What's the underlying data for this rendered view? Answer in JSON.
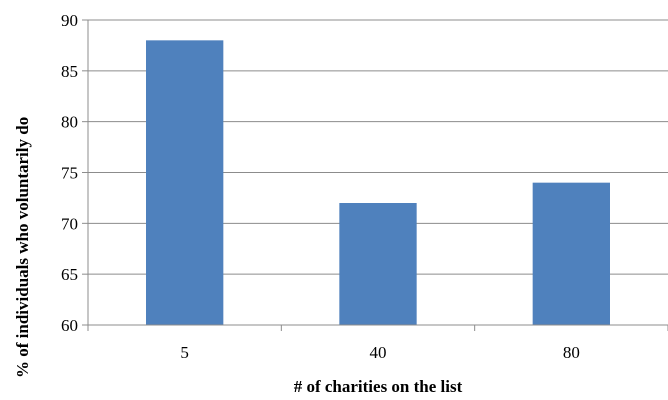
{
  "chart_data": {
    "type": "bar",
    "categories": [
      "5",
      "40",
      "80"
    ],
    "values": [
      88,
      72,
      74
    ],
    "title": "",
    "xlabel": "# of charities on the list",
    "ylabel": "% of individuals who voluntarily do",
    "ylim": [
      60,
      90
    ],
    "yticks": [
      "60",
      "65",
      "70",
      "75",
      "80",
      "85",
      "90"
    ],
    "grid": true,
    "legend": "none",
    "bar_color": "#4f81bd",
    "grid_color": "#8c8c8c"
  }
}
